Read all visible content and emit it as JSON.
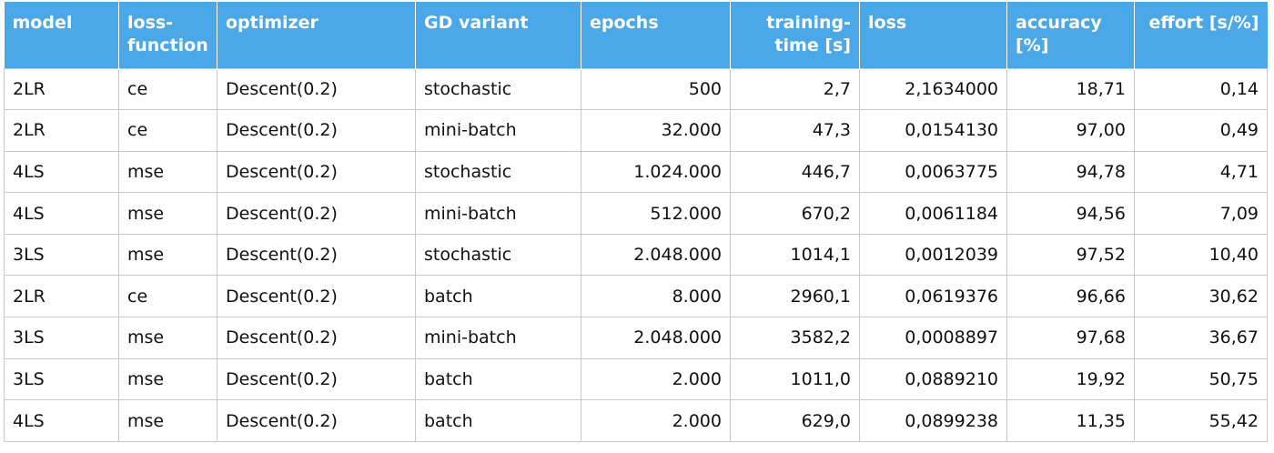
{
  "table": {
    "headers": [
      "model",
      "loss-\nfunction",
      "optimizer",
      "GD variant",
      "epochs",
      "training-\ntime [s]",
      "loss",
      "accuracy\n[%]",
      "effort [s/%]"
    ],
    "rows": [
      [
        "2LR",
        "ce",
        "Descent(0.2)",
        "stochastic",
        "500",
        "2,7",
        "2,1634000",
        "18,71",
        "0,14"
      ],
      [
        "2LR",
        "ce",
        "Descent(0.2)",
        "mini-batch",
        "32.000",
        "47,3",
        "0,0154130",
        "97,00",
        "0,49"
      ],
      [
        "4LS",
        "mse",
        "Descent(0.2)",
        "stochastic",
        "1.024.000",
        "446,7",
        "0,0063775",
        "94,78",
        "4,71"
      ],
      [
        "4LS",
        "mse",
        "Descent(0.2)",
        "mini-batch",
        "512.000",
        "670,2",
        "0,0061184",
        "94,56",
        "7,09"
      ],
      [
        "3LS",
        "mse",
        "Descent(0.2)",
        "stochastic",
        "2.048.000",
        "1014,1",
        "0,0012039",
        "97,52",
        "10,40"
      ],
      [
        "2LR",
        "ce",
        "Descent(0.2)",
        "batch",
        "8.000",
        "2960,1",
        "0,0619376",
        "96,66",
        "30,62"
      ],
      [
        "3LS",
        "mse",
        "Descent(0.2)",
        "mini-batch",
        "2.048.000",
        "3582,2",
        "0,0008897",
        "97,68",
        "36,67"
      ],
      [
        "3LS",
        "mse",
        "Descent(0.2)",
        "batch",
        "2.000",
        "1011,0",
        "0,0889210",
        "19,92",
        "50,75"
      ],
      [
        "4LS",
        "mse",
        "Descent(0.2)",
        "batch",
        "2.000",
        "629,0",
        "0,0899238",
        "11,35",
        "55,42"
      ]
    ]
  },
  "colors": {
    "header_background": "#4aa8e8",
    "header_text": "#ffffff",
    "grid_lines": "#c9c9c9",
    "cell_text": "#111111"
  }
}
